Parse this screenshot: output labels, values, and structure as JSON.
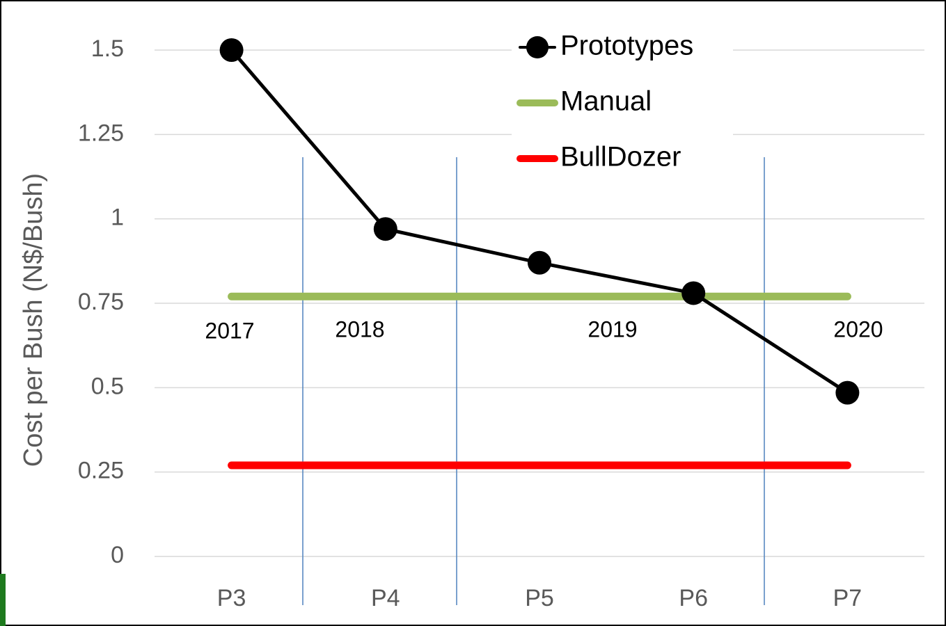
{
  "chart_data": {
    "type": "line",
    "y_label": "Cost per Bush (N$/Bush)",
    "categories": [
      "P3",
      "P4",
      "P5",
      "P6",
      "P7"
    ],
    "series": [
      {
        "name": "Prototypes",
        "color": "#000000",
        "values": [
          1.5,
          0.97,
          0.87,
          0.78,
          0.485
        ],
        "markers": true
      },
      {
        "name": "Manual",
        "color": "#9bbb59",
        "values": [
          0.77,
          0.77,
          0.77,
          0.77,
          0.77
        ],
        "markers": false
      },
      {
        "name": "BullDozer",
        "color": "#ff0000",
        "values": [
          0.27,
          0.27,
          0.27,
          0.27,
          0.27
        ],
        "markers": false
      }
    ],
    "annotations": [
      "2017",
      "2018",
      "2019",
      "2020"
    ],
    "ylim": [
      0,
      1.5
    ],
    "yticks": [
      0,
      0.25,
      0.5,
      0.75,
      1,
      1.25,
      1.5
    ],
    "grid": true,
    "legend": "top"
  }
}
